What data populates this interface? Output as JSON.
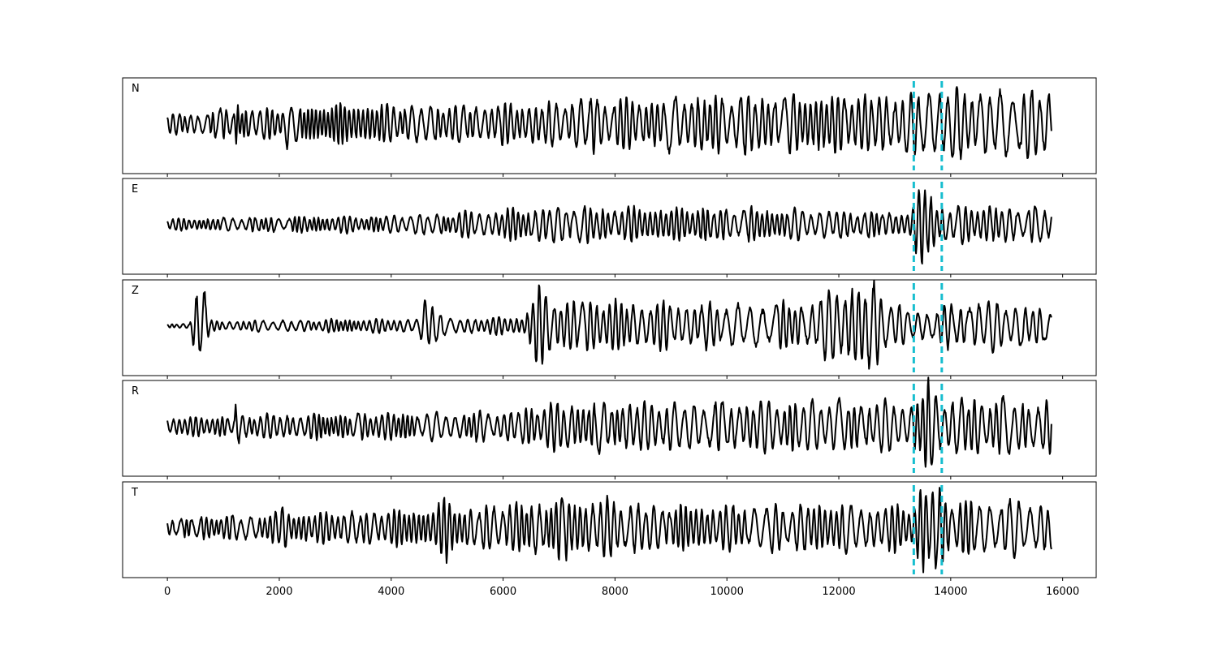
{
  "chart_data": {
    "type": "line",
    "xlim": [
      -800,
      16600
    ],
    "x_ticks": [
      0,
      2000,
      4000,
      6000,
      8000,
      10000,
      12000,
      14000,
      16000
    ],
    "x_tick_labels": [
      "0",
      "2000",
      "4000",
      "6000",
      "8000",
      "10000",
      "12000",
      "14000",
      "16000"
    ],
    "sample_count": 15800,
    "trace_color": "#000000",
    "marker_color": "#17becf",
    "markers": [
      13340,
      13840
    ],
    "grid": false,
    "panels": [
      {
        "label": "N",
        "seed": 11,
        "envelope": [
          [
            0,
            0.2
          ],
          [
            1200,
            0.3
          ],
          [
            1240,
            0.8
          ],
          [
            1300,
            0.3
          ],
          [
            2100,
            0.35
          ],
          [
            2150,
            0.7
          ],
          [
            2200,
            0.35
          ],
          [
            3000,
            0.4
          ],
          [
            6000,
            0.4
          ],
          [
            7500,
            0.5
          ],
          [
            7600,
            0.8
          ],
          [
            7700,
            0.5
          ],
          [
            9000,
            0.55
          ],
          [
            10000,
            0.6
          ],
          [
            12000,
            0.6
          ],
          [
            13300,
            0.6
          ],
          [
            13700,
            0.85
          ],
          [
            14000,
            0.7
          ],
          [
            15800,
            0.7
          ]
        ],
        "freq": [
          [
            0,
            1.0
          ],
          [
            3000,
            1.0
          ],
          [
            8000,
            0.8
          ],
          [
            15800,
            0.65
          ]
        ]
      },
      {
        "label": "E",
        "seed": 23,
        "envelope": [
          [
            0,
            0.12
          ],
          [
            2000,
            0.16
          ],
          [
            4000,
            0.18
          ],
          [
            6000,
            0.3
          ],
          [
            7000,
            0.4
          ],
          [
            8000,
            0.35
          ],
          [
            10000,
            0.35
          ],
          [
            13300,
            0.25
          ],
          [
            13450,
            0.8
          ],
          [
            13600,
            0.95
          ],
          [
            13750,
            0.4
          ],
          [
            15800,
            0.35
          ]
        ],
        "freq": [
          [
            0,
            1.0
          ],
          [
            6000,
            0.9
          ],
          [
            15800,
            0.75
          ]
        ]
      },
      {
        "label": "Z",
        "seed": 37,
        "envelope": [
          [
            0,
            0.04
          ],
          [
            400,
            0.05
          ],
          [
            500,
            0.9
          ],
          [
            650,
            0.9
          ],
          [
            750,
            0.1
          ],
          [
            4500,
            0.15
          ],
          [
            4600,
            0.5
          ],
          [
            4800,
            0.5
          ],
          [
            5000,
            0.15
          ],
          [
            6400,
            0.2
          ],
          [
            6600,
            0.95
          ],
          [
            6800,
            0.6
          ],
          [
            8000,
            0.5
          ],
          [
            10000,
            0.45
          ],
          [
            11500,
            0.5
          ],
          [
            12000,
            0.85
          ],
          [
            12600,
            0.9
          ],
          [
            13000,
            0.45
          ],
          [
            13400,
            0.3
          ],
          [
            14500,
            0.55
          ],
          [
            15800,
            0.35
          ]
        ],
        "freq": [
          [
            0,
            1.0
          ],
          [
            6000,
            0.8
          ],
          [
            15800,
            0.55
          ]
        ]
      },
      {
        "label": "R",
        "seed": 53,
        "envelope": [
          [
            0,
            0.2
          ],
          [
            1200,
            0.2
          ],
          [
            1220,
            0.6
          ],
          [
            1300,
            0.25
          ],
          [
            6000,
            0.3
          ],
          [
            7000,
            0.5
          ],
          [
            9000,
            0.5
          ],
          [
            11500,
            0.55
          ],
          [
            13300,
            0.5
          ],
          [
            13600,
            0.95
          ],
          [
            13800,
            0.6
          ],
          [
            15800,
            0.55
          ]
        ],
        "freq": [
          [
            0,
            1.0
          ],
          [
            6000,
            0.85
          ],
          [
            15800,
            0.7
          ]
        ]
      },
      {
        "label": "T",
        "seed": 71,
        "envelope": [
          [
            0,
            0.2
          ],
          [
            2000,
            0.3
          ],
          [
            2100,
            0.6
          ],
          [
            2200,
            0.3
          ],
          [
            4800,
            0.4
          ],
          [
            5000,
            0.7
          ],
          [
            5200,
            0.4
          ],
          [
            6800,
            0.6
          ],
          [
            7200,
            0.65
          ],
          [
            9000,
            0.45
          ],
          [
            12000,
            0.5
          ],
          [
            13300,
            0.45
          ],
          [
            13500,
            0.95
          ],
          [
            13700,
            0.9
          ],
          [
            14000,
            0.6
          ],
          [
            15800,
            0.55
          ]
        ],
        "freq": [
          [
            0,
            1.0
          ],
          [
            6000,
            0.85
          ],
          [
            15800,
            0.7
          ]
        ]
      }
    ]
  }
}
